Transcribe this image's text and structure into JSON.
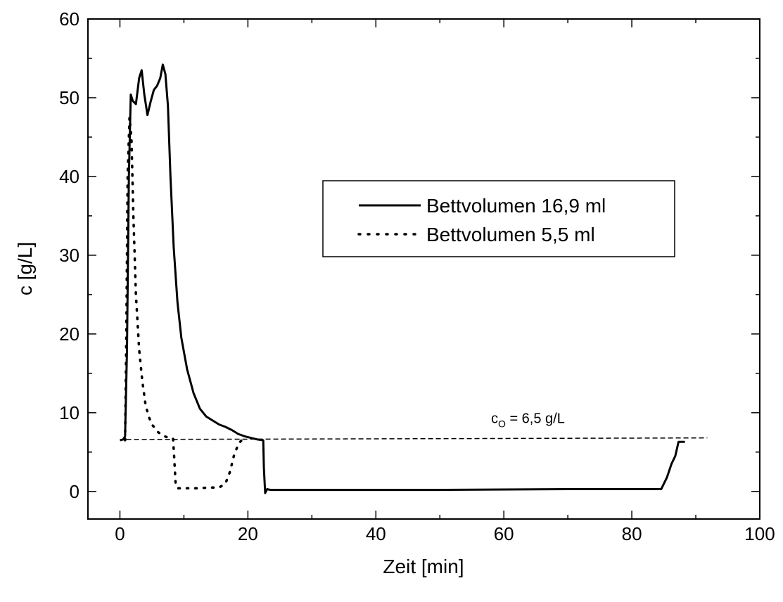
{
  "chart_data": {
    "type": "line",
    "title": "",
    "xlabel": "Zeit [min]",
    "ylabel": "c [g/L]",
    "xlim": [
      -5,
      100
    ],
    "ylim": [
      -3.5,
      60
    ],
    "x_ticks": [
      0,
      20,
      40,
      60,
      80,
      100
    ],
    "y_ticks": [
      0,
      10,
      20,
      30,
      40,
      50,
      60
    ],
    "x_minor_step": 10,
    "y_minor_step": 5,
    "grid": false,
    "legend_position": "center-right",
    "series": [
      {
        "name": "Bettvolumen 16,9 ml",
        "style": "solid",
        "color": "#000000",
        "x": [
          0,
          0.5,
          0.8,
          1.1,
          1.4,
          1.7,
          2.0,
          2.5,
          3.0,
          3.4,
          3.8,
          4.3,
          4.8,
          5.3,
          5.8,
          6.3,
          6.7,
          7.1,
          7.5,
          7.9,
          8.4,
          9.0,
          9.6,
          10.5,
          11.5,
          12.5,
          13.5,
          14.5,
          15.5,
          16.5,
          17.5,
          18.5,
          19.5,
          20.5,
          21.5,
          22.4,
          22.5,
          22.7,
          23.0,
          23.5,
          30,
          50,
          70,
          84.6,
          85.5,
          86.2,
          86.8,
          87.3,
          88.3
        ],
        "y": [
          6.5,
          6.6,
          7.0,
          18,
          40,
          50.4,
          49.6,
          49.2,
          52.5,
          53.5,
          50.5,
          47.8,
          49.5,
          51,
          51.5,
          52.5,
          54.2,
          53,
          49,
          40,
          31,
          24,
          19.5,
          15.5,
          12.5,
          10.5,
          9.5,
          9.0,
          8.5,
          8.2,
          7.8,
          7.3,
          7.0,
          6.8,
          6.6,
          6.5,
          3.0,
          -0.2,
          0.3,
          0.2,
          0.2,
          0.2,
          0.3,
          0.3,
          1.8,
          3.5,
          4.5,
          6.3,
          6.3
        ]
      },
      {
        "name": "Bettvolumen 5,5 ml",
        "style": "dotted",
        "color": "#000000",
        "x": [
          0.8,
          1.0,
          1.2,
          1.5,
          1.8,
          2.1,
          2.5,
          3.0,
          3.5,
          4.0,
          4.5,
          5.0,
          6.0,
          7.0,
          8.0,
          8.3,
          8.5,
          8.7,
          9.0,
          10,
          12,
          14,
          15.5,
          16.5,
          17.2,
          17.8,
          18.5,
          19.2
        ],
        "y": [
          6.5,
          20,
          40,
          47.5,
          45,
          35,
          25,
          18,
          14,
          11,
          9.5,
          8.5,
          7.5,
          7.0,
          6.7,
          6.7,
          4.0,
          1.0,
          0.4,
          0.4,
          0.4,
          0.5,
          0.5,
          1.0,
          2.5,
          4.5,
          6.0,
          6.7
        ]
      }
    ],
    "reference_line": {
      "label_main": "c",
      "label_sub": "O",
      "label_rest": " = 6,5 g/L",
      "x_start": 1.0,
      "x_end": 91.8,
      "y_start": 6.6,
      "y_end": 6.8,
      "label_x": 58,
      "label_y": 8.7,
      "style": "dashed"
    }
  }
}
